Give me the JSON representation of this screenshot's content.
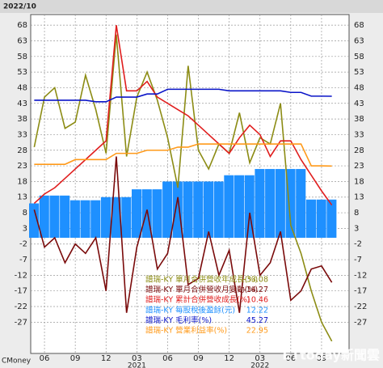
{
  "chart_data": {
    "type": "combo",
    "date_label": "2022/10",
    "source": "CMoney",
    "watermark": "ETtoday新聞雲",
    "categories": [
      null,
      "06",
      null,
      null,
      "09",
      null,
      null,
      "12",
      null,
      null,
      "03",
      null,
      null,
      "06",
      null,
      null,
      "09",
      null,
      null,
      "12",
      null,
      null,
      "03",
      null,
      null,
      "06",
      null,
      null,
      "09",
      null
    ],
    "year_labels": [
      "2021",
      "2022"
    ],
    "ylim": [
      -37,
      71.4
    ],
    "yticks": [
      68,
      63,
      58,
      53,
      48,
      43,
      38,
      33,
      28,
      23,
      18,
      13,
      8,
      3,
      -2,
      -7,
      -12,
      -17,
      -22,
      -27
    ],
    "grid": true,
    "legend": "bottom-center",
    "series": [
      {
        "name": "譜瑞-KY 單月合併營收年成長(%)",
        "type": "line",
        "color": "#8c8c14",
        "values": [
          29,
          45,
          48,
          35,
          37,
          52,
          41,
          27,
          65,
          26,
          45,
          53,
          44,
          32,
          16,
          55,
          28,
          22,
          30,
          27,
          40,
          24,
          32,
          30,
          43,
          4,
          -5,
          -17,
          -27,
          -33.08
        ]
      },
      {
        "name": "譜瑞-KY 單月合併營收月變動(%)",
        "type": "line",
        "color": "#7a0a0a",
        "values": [
          9,
          -3,
          0,
          -8,
          -2,
          -5,
          0,
          -17,
          26,
          -24,
          -3,
          9,
          -10,
          -5,
          13,
          -15,
          -13,
          2,
          -12,
          -4,
          -24,
          8,
          -12,
          -8,
          2,
          -20,
          -17,
          -10,
          -9,
          -14.27
        ]
      },
      {
        "name": "譜瑞-KY 累計合併營收成長(%)",
        "type": "line",
        "color": "#e01e1e",
        "values": [
          11,
          14,
          16,
          19,
          22,
          25,
          28,
          31,
          68,
          47,
          47,
          50,
          45,
          43,
          41,
          39,
          36,
          33,
          30,
          27,
          32,
          36,
          33,
          26,
          31,
          31,
          25,
          20,
          15,
          10.46
        ]
      },
      {
        "name": "譜瑞-KY 每股稅後盈餘(元)",
        "type": "bar",
        "color": "#1e90ff",
        "values": [
          11,
          13.5,
          13.5,
          13.5,
          12,
          12,
          12,
          13,
          13,
          13,
          15.5,
          15.5,
          15.5,
          18,
          18,
          18,
          18,
          18,
          18,
          20,
          20,
          20,
          22,
          22,
          22,
          22,
          22,
          12.22,
          12.22,
          12.22
        ]
      },
      {
        "name": "譜瑞-KY 毛利率(%)",
        "type": "line",
        "color": "#0a14c8",
        "values": [
          44,
          44,
          44,
          44,
          44,
          44,
          43.5,
          43.5,
          45,
          45,
          45,
          46,
          46,
          47.5,
          47.5,
          47.5,
          47.5,
          47.5,
          47.5,
          47,
          47,
          47,
          47,
          47,
          47,
          46.5,
          46.5,
          45.3,
          45.3,
          45.27
        ]
      },
      {
        "name": "譜瑞-KY 營業利益率(%)",
        "type": "line",
        "color": "#ff9a1a",
        "values": [
          23.5,
          23.5,
          23.5,
          23.5,
          25,
          25,
          25,
          25,
          27,
          27,
          27,
          28,
          28,
          28,
          29,
          29,
          30,
          30,
          30,
          30,
          30,
          30,
          30,
          30,
          30,
          30,
          30,
          23,
          23,
          22.95
        ]
      }
    ]
  }
}
